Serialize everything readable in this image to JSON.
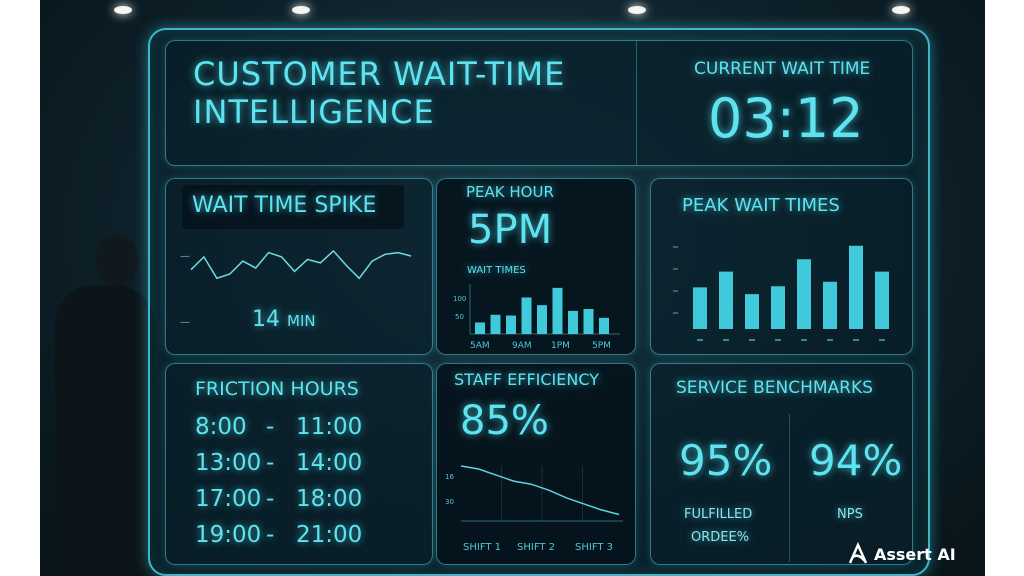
{
  "header": {
    "title_line1": "CUSTOMER WAIT-TIME",
    "title_line2": "INTELLIGENCE",
    "current_label": "CURRENT WAIT TIME",
    "current_value": "03:12"
  },
  "wait_spike": {
    "title": "WAIT TIME SPIKE",
    "value": "14",
    "unit": "MIN",
    "series": [
      40,
      55,
      30,
      35,
      50,
      42,
      60,
      55,
      38,
      52,
      48,
      62,
      45,
      30,
      50,
      58,
      60,
      56
    ]
  },
  "peak_hour": {
    "title": "PEAK HOUR",
    "value": "5PM",
    "chart_title": "WAIT TIMES",
    "y_ticks": [
      "100",
      "50"
    ],
    "x_ticks": [
      "5AM",
      "9AM",
      "1PM",
      "5PM"
    ],
    "values": [
      30,
      50,
      48,
      95,
      75,
      120,
      60,
      65,
      42
    ]
  },
  "peak_wait_times": {
    "title": "PEAK WAIT TIMES",
    "values": [
      37,
      51,
      31,
      38,
      62,
      42,
      74,
      51
    ]
  },
  "friction_hours": {
    "title": "FRICTION HOURS",
    "rows": [
      {
        "start": "8:00",
        "end": "11:00"
      },
      {
        "start": "13:00",
        "end": "14:00"
      },
      {
        "start": "17:00",
        "end": "18:00"
      },
      {
        "start": "19:00",
        "end": "21:00"
      }
    ]
  },
  "staff_efficiency": {
    "title": "STAFF EFFICIENCY",
    "value": "85%",
    "y_ticks": [
      "16",
      "30"
    ],
    "x_ticks": [
      "SHIFT 1",
      "SHIFT 2",
      "SHIFT 3"
    ],
    "series": [
      100,
      96,
      88,
      80,
      76,
      68,
      58,
      50,
      42,
      36
    ]
  },
  "benchmarks": {
    "title": "SERVICE BENCHMARKS",
    "items": [
      {
        "value": "95%",
        "label_line1": "FULFILLED",
        "label_line2": "ORDEE%"
      },
      {
        "value": "94%",
        "label_line1": "NPS",
        "label_line2": ""
      }
    ]
  },
  "brand": {
    "name": "Assert AI"
  },
  "colors": {
    "accent": "#5ee3ef",
    "bar": "#3fc9db",
    "background": "#0d1f28"
  }
}
